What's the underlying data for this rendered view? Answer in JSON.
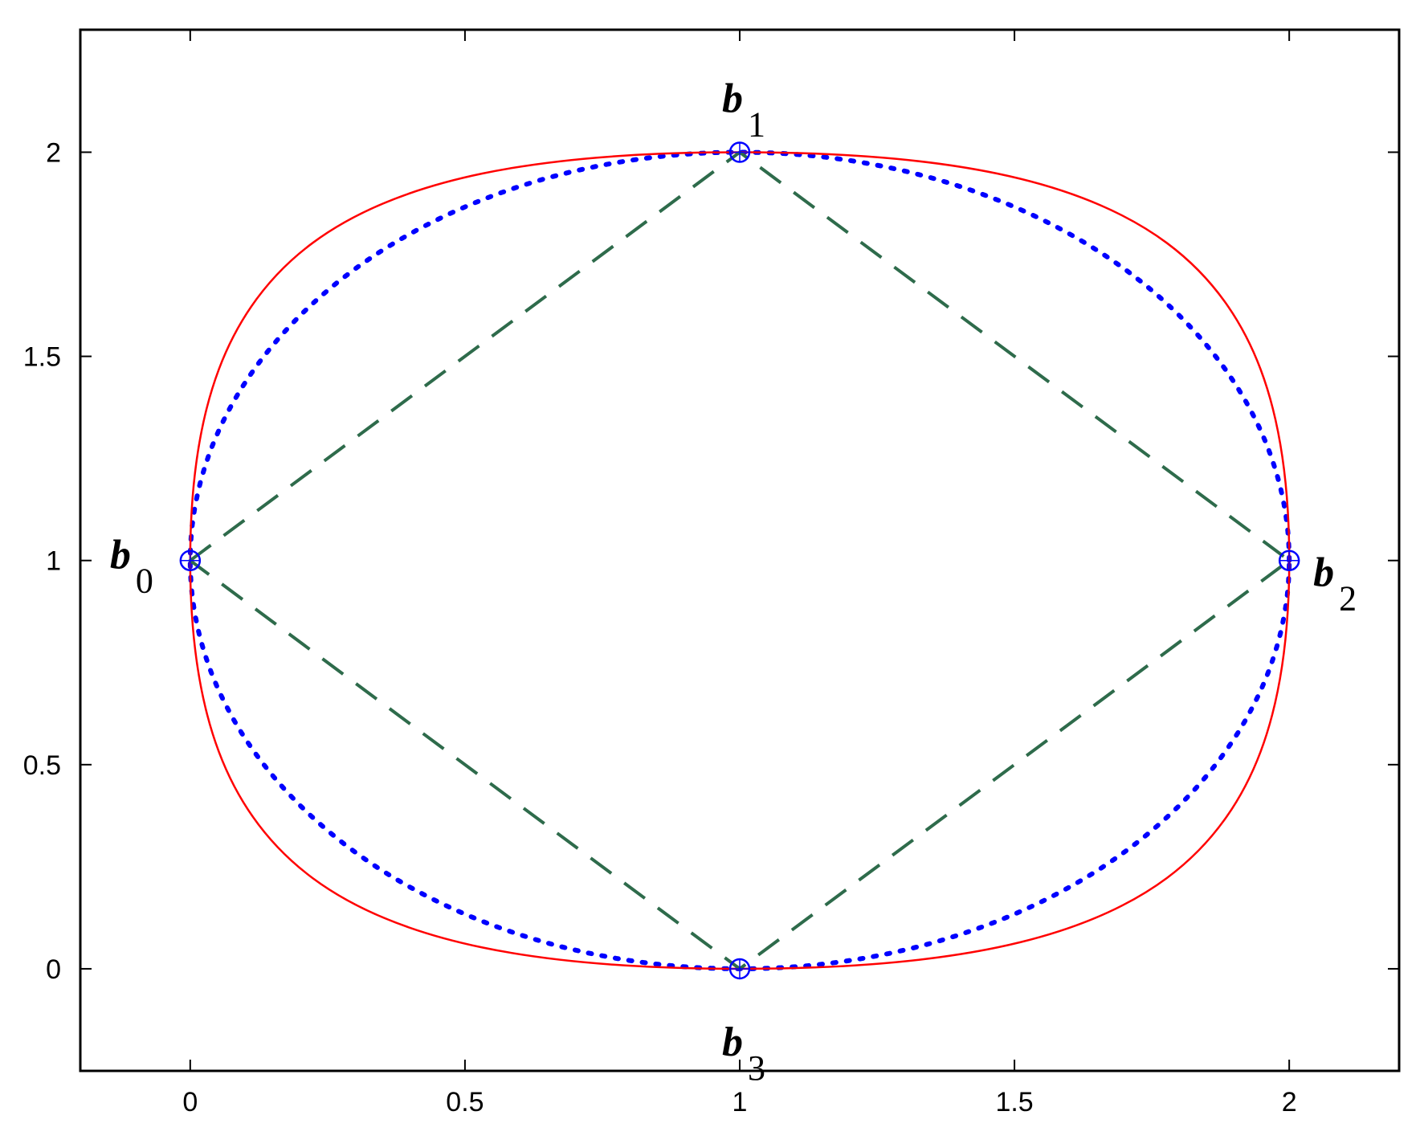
{
  "chart_data": {
    "type": "line",
    "title": "",
    "xlabel": "",
    "ylabel": "",
    "xlim": [
      -0.2,
      2.2
    ],
    "ylim": [
      -0.25,
      2.3
    ],
    "x_ticks": [
      0,
      0.5,
      1,
      1.5,
      2
    ],
    "y_ticks": [
      0,
      0.5,
      1,
      1.5,
      2
    ],
    "x_tick_labels": [
      "0",
      "0.5",
      "1",
      "1.5",
      "2"
    ],
    "y_tick_labels": [
      "0",
      "0.5",
      "1",
      "1.5",
      "2"
    ],
    "grid": false,
    "control_points": [
      {
        "name": "b",
        "sub": "0",
        "x": 0,
        "y": 1,
        "label_side": "left"
      },
      {
        "name": "b",
        "sub": "1",
        "x": 1,
        "y": 2,
        "label_side": "top"
      },
      {
        "name": "b",
        "sub": "2",
        "x": 2,
        "y": 1,
        "label_side": "right"
      },
      {
        "name": "b",
        "sub": "3",
        "x": 1,
        "y": 0,
        "label_side": "bottom"
      }
    ],
    "series": [
      {
        "style": "dotted",
        "color": "#0000ff",
        "shape": "circle",
        "center": [
          1,
          1
        ],
        "radius_x": 1,
        "radius_y": 1
      },
      {
        "style": "solid",
        "color": "#ff0000",
        "shape": "closed-curve",
        "control_points": [
          [
            0,
            1
          ],
          [
            1,
            2
          ],
          [
            2,
            1
          ],
          [
            1,
            0
          ]
        ]
      },
      {
        "style": "dashed",
        "color": "#2e6b4b",
        "shape": "polygon",
        "points": [
          [
            0,
            1
          ],
          [
            1,
            2
          ],
          [
            2,
            1
          ],
          [
            1,
            0
          ]
        ]
      }
    ],
    "markers": {
      "shape": "open-circle",
      "color": "#0000ff"
    }
  }
}
